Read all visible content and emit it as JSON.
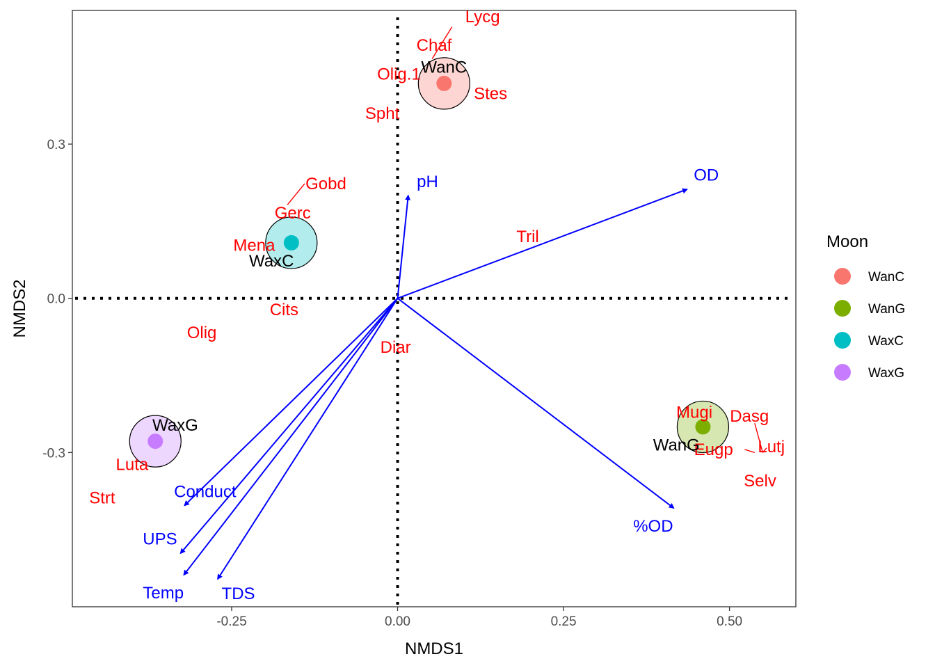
{
  "chart_data": {
    "type": "scatter",
    "xlabel": "NMDS1",
    "ylabel": "NMDS2",
    "xlim": [
      -0.49,
      0.6
    ],
    "ylim": [
      -0.6,
      0.56
    ],
    "xticks": [
      -0.25,
      0.0,
      0.25,
      0.5
    ],
    "xtick_labels": [
      "-0.25",
      "0.00",
      "0.25",
      "0.50"
    ],
    "yticks": [
      -0.3,
      0.0,
      0.3
    ],
    "ytick_labels": [
      "-0.3",
      "0.0",
      "0.3"
    ],
    "grid": false,
    "reference_lines": {
      "x": 0,
      "y": 0,
      "style": "dotted"
    },
    "legend": {
      "title": "Moon",
      "placement": "right",
      "entries": [
        {
          "label": "WanC",
          "color": "#F8766D"
        },
        {
          "label": "WanG",
          "color": "#7CAE00"
        },
        {
          "label": "WaxC",
          "color": "#00BFC4"
        },
        {
          "label": "WaxG",
          "color": "#C77CFF"
        }
      ]
    },
    "groups": [
      {
        "name": "WanC",
        "x": 0.07,
        "y": 0.418,
        "color": "#F8766D",
        "label_x": 0.07,
        "label_y": 0.45
      },
      {
        "name": "WaxC",
        "x": -0.16,
        "y": 0.108,
        "color": "#00BFC4",
        "label_x": -0.19,
        "label_y": 0.073
      },
      {
        "name": "WaxG",
        "x": -0.365,
        "y": -0.278,
        "color": "#C77CFF",
        "label_x": -0.335,
        "label_y": -0.247
      },
      {
        "name": "WanG",
        "x": 0.46,
        "y": -0.25,
        "color": "#7CAE00",
        "label_x": 0.42,
        "label_y": -0.285
      }
    ],
    "species": [
      {
        "label": "Lycg",
        "x": 0.128,
        "y": 0.548
      },
      {
        "label": "Chaf",
        "x": 0.055,
        "y": 0.492
      },
      {
        "label": "Olig.1",
        "x": 0.002,
        "y": 0.436
      },
      {
        "label": "Stes",
        "x": 0.14,
        "y": 0.398
      },
      {
        "label": "Spht",
        "x": -0.023,
        "y": 0.36
      },
      {
        "label": "Gobd",
        "x": -0.108,
        "y": 0.223
      },
      {
        "label": "Gerc",
        "x": -0.158,
        "y": 0.166
      },
      {
        "label": "Mena",
        "x": -0.216,
        "y": 0.103
      },
      {
        "label": "Tril",
        "x": 0.196,
        "y": 0.12
      },
      {
        "label": "Cits",
        "x": -0.171,
        "y": -0.022
      },
      {
        "label": "Olig",
        "x": -0.295,
        "y": -0.067
      },
      {
        "label": "Diar",
        "x": -0.003,
        "y": -0.095
      },
      {
        "label": "Mugi",
        "x": 0.447,
        "y": -0.222
      },
      {
        "label": "Dasg",
        "x": 0.53,
        "y": -0.229
      },
      {
        "label": "Lutj",
        "x": 0.563,
        "y": -0.289
      },
      {
        "label": "Eugp",
        "x": 0.476,
        "y": -0.294
      },
      {
        "label": "Selv",
        "x": 0.546,
        "y": -0.355
      },
      {
        "label": "Luta",
        "x": -0.4,
        "y": -0.323
      },
      {
        "label": "Strt",
        "x": -0.445,
        "y": -0.388
      }
    ],
    "vectors": [
      {
        "label": "pH",
        "x": 0.016,
        "y": 0.2,
        "label_x": 0.045,
        "label_y": 0.227
      },
      {
        "label": "OD",
        "x": 0.436,
        "y": 0.212,
        "label_x": 0.465,
        "label_y": 0.24
      },
      {
        "label": "%OD",
        "x": 0.416,
        "y": -0.408,
        "label_x": 0.385,
        "label_y": -0.443
      },
      {
        "label": "Conduct",
        "x": -0.321,
        "y": -0.403,
        "label_x": -0.29,
        "label_y": -0.376
      },
      {
        "label": "UPS",
        "x": -0.327,
        "y": -0.496,
        "label_x": -0.358,
        "label_y": -0.468
      },
      {
        "label": "Temp",
        "x": -0.322,
        "y": -0.538,
        "label_x": -0.353,
        "label_y": -0.573
      },
      {
        "label": "TDS",
        "x": -0.271,
        "y": -0.546,
        "label_x": -0.24,
        "label_y": -0.574
      }
    ],
    "leader_lines": [
      {
        "x1": 0.082,
        "y1": 0.528,
        "x2": 0.052,
        "y2": 0.466
      },
      {
        "x1": -0.14,
        "y1": 0.223,
        "x2": -0.166,
        "y2": 0.182
      },
      {
        "x1": 0.538,
        "y1": -0.243,
        "x2": 0.55,
        "y2": -0.3
      },
      {
        "x1": 0.538,
        "y1": -0.3,
        "x2": 0.523,
        "y2": -0.294
      },
      {
        "x1": 0.55,
        "y1": -0.3,
        "x2": 0.556,
        "y2": -0.291
      }
    ],
    "colors": {
      "species": "#ff0000",
      "vectors": "#0000ff",
      "group_labels": "#000000"
    }
  }
}
